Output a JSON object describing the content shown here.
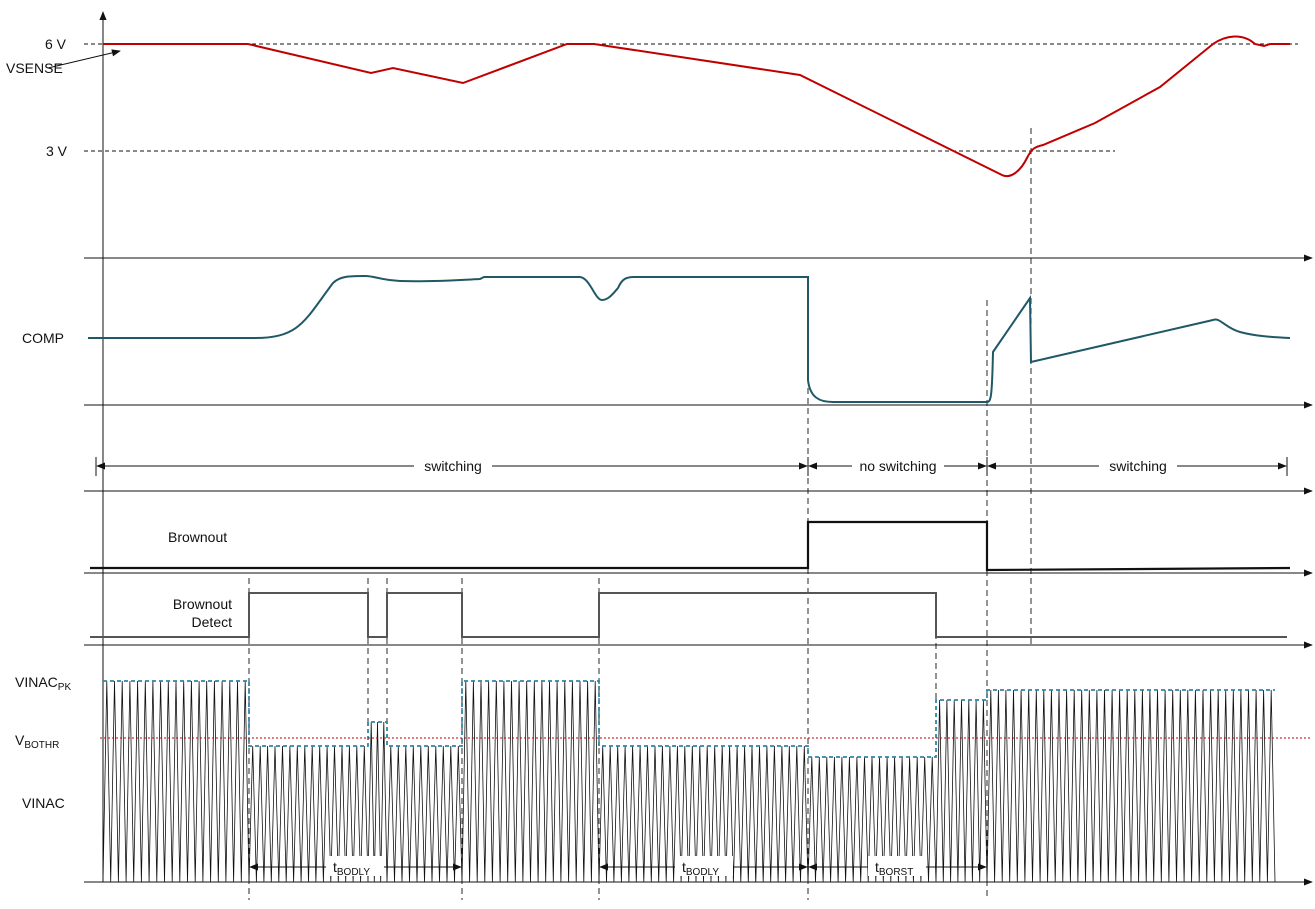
{
  "labels": {
    "v6": "6 V",
    "v3": "3 V",
    "vsense": "VSENSE",
    "comp": "COMP",
    "brownout": "Brownout",
    "bo_detect_1": "Brownout",
    "bo_detect_2": "Detect",
    "vinac_pk_main": "VINAC",
    "vinac_pk_sub": "PK",
    "vbothr_main": "V",
    "vbothr_sub": "BOTHR",
    "vinac": "VINAC"
  },
  "phases": [
    {
      "label": "switching"
    },
    {
      "label": "no switching"
    },
    {
      "label": "switching"
    }
  ],
  "timing_labels": [
    {
      "main": "t",
      "sub": "BODLY"
    },
    {
      "main": "t",
      "sub": "BODLY"
    },
    {
      "main": "t",
      "sub": "BORST"
    }
  ],
  "colors": {
    "vsense": "#c00000",
    "comp": "#1f5866",
    "digital": "#111111",
    "bo_detect": "#555555",
    "envelope": "#2e86a8",
    "threshold": "#c00000",
    "waveform": "#111111"
  },
  "icons": [
    "arrow-head-icon"
  ]
}
